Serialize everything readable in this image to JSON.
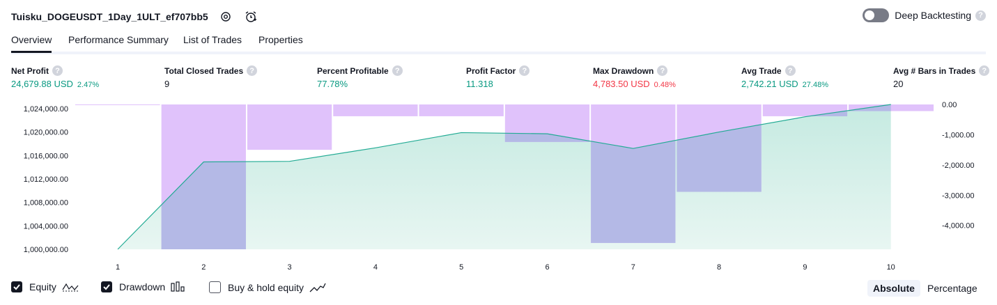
{
  "header": {
    "title": "Tuisku_DOGEUSDT_1Day_1ULT_ef707bb5",
    "deep_backtesting_label": "Deep Backtesting",
    "help_glyph": "?"
  },
  "tabs": [
    {
      "label": "Overview"
    },
    {
      "label": "Performance Summary"
    },
    {
      "label": "List of Trades"
    },
    {
      "label": "Properties"
    }
  ],
  "metrics": [
    {
      "label": "Net Profit",
      "value": "24,679.88 USD",
      "pct": "2.47%",
      "color": "green"
    },
    {
      "label": "Total Closed Trades",
      "value": "9",
      "pct": "",
      "color": "black"
    },
    {
      "label": "Percent Profitable",
      "value": "77.78%",
      "pct": "",
      "color": "green"
    },
    {
      "label": "Profit Factor",
      "value": "11.318",
      "pct": "",
      "color": "green"
    },
    {
      "label": "Max Drawdown",
      "value": "4,783.50 USD",
      "pct": "0.48%",
      "color": "red"
    },
    {
      "label": "Avg Trade",
      "value": "2,742.21 USD",
      "pct": "27.48%",
      "color": "green"
    },
    {
      "label": "Avg # Bars in Trades",
      "value": "20",
      "pct": "",
      "color": "black"
    }
  ],
  "legend": {
    "equity": "Equity",
    "drawdown": "Drawdown",
    "buyhold": "Buy & hold equity"
  },
  "scale_toggle": {
    "absolute": "Absolute",
    "percentage": "Percentage"
  },
  "colors": {
    "equity_line": "#22ab94",
    "equity_fill": "#c5eae1",
    "drawdown_fill": "#e0c2fb",
    "overlap_fill": "#b4b9e6",
    "positive": "#089981",
    "negative": "#f23645"
  },
  "chart_data": {
    "type": "area",
    "x": [
      1,
      2,
      3,
      4,
      5,
      6,
      7,
      8,
      9,
      10
    ],
    "x_ticks": [
      "1",
      "2",
      "3",
      "4",
      "5",
      "6",
      "7",
      "8",
      "9",
      "10"
    ],
    "series": [
      {
        "name": "Equity",
        "axis": "left",
        "values": [
          1000000,
          1014900,
          1015000,
          1017300,
          1019900,
          1019700,
          1017200,
          1020000,
          1022600,
          1024700
        ]
      },
      {
        "name": "Drawdown",
        "axis": "right",
        "values": [
          0,
          -4790,
          -1500,
          -390,
          -390,
          -1240,
          -4580,
          -2890,
          -390,
          -220
        ]
      }
    ],
    "left_axis": {
      "ticks": [
        "1,024,000.00",
        "1,020,000.00",
        "1,016,000.00",
        "1,012,000.00",
        "1,008,000.00",
        "1,004,000.00",
        "1,000,000.00"
      ],
      "tick_values": [
        1024000,
        1020000,
        1016000,
        1012000,
        1008000,
        1004000,
        1000000
      ],
      "range": [
        1000000,
        1024700
      ]
    },
    "right_axis": {
      "ticks": [
        "0.00",
        "-1,000.00",
        "-2,000.00",
        "-3,000.00",
        "-4,000.00"
      ],
      "tick_values": [
        0,
        -1000,
        -2000,
        -3000,
        -4000
      ],
      "range": [
        -4790,
        0
      ]
    }
  }
}
